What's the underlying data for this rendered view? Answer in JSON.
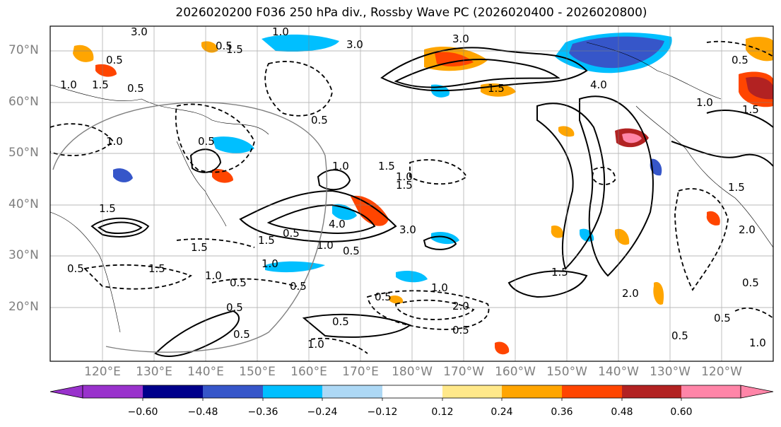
{
  "title": "2026020200 F036 250 hPa div., Rossby Wave PC (2026020400 - 2026020800)",
  "lat_labels": [
    "70°N",
    "60°N",
    "50°N",
    "40°N",
    "30°N",
    "20°N"
  ],
  "lon_labels": [
    "120°E",
    "130°E",
    "140°E",
    "150°E",
    "160°E",
    "170°E",
    "180°W",
    "170°W",
    "160°W",
    "150°W",
    "140°W",
    "130°W",
    "120°W"
  ],
  "colorbar": {
    "colors": [
      "#9932cc",
      "#00008b",
      "#3656c9",
      "#00bfff",
      "#add8f5",
      "#ffffff",
      "#ffe88a",
      "#ffa500",
      "#ff4500",
      "#b22222",
      "#ff85a8"
    ],
    "tick_labels": [
      "−0.60",
      "−0.48",
      "−0.36",
      "−0.24",
      "−0.12",
      "0.12",
      "0.24",
      "0.36",
      "0.48",
      "0.60"
    ]
  },
  "contour_labels": [
    "3.0",
    "1.5",
    "1.0",
    "0.5",
    "1.0",
    "1.5",
    "0.5",
    "0.5",
    "3.0",
    "3.0",
    "1.5",
    "4.0",
    "0.5",
    "1.5",
    "1.0",
    "0.5",
    "0.5",
    "1.5",
    "1.0",
    "1.5",
    "4.0",
    "1.0",
    "0.5",
    "3.0",
    "1.5",
    "1.5",
    "1.0",
    "0.5",
    "1.0",
    "0.5",
    "0.5",
    "1.0",
    "2.0",
    "0.5",
    "1.0",
    "0.5",
    "1.5",
    "2.0",
    "0.5",
    "0.5",
    "1.0",
    "1.5",
    "2.0",
    "0.5",
    "0.5",
    "1.0",
    "1.5",
    "0.5",
    "0.5",
    "1.5",
    "1.0",
    "0.5"
  ]
}
